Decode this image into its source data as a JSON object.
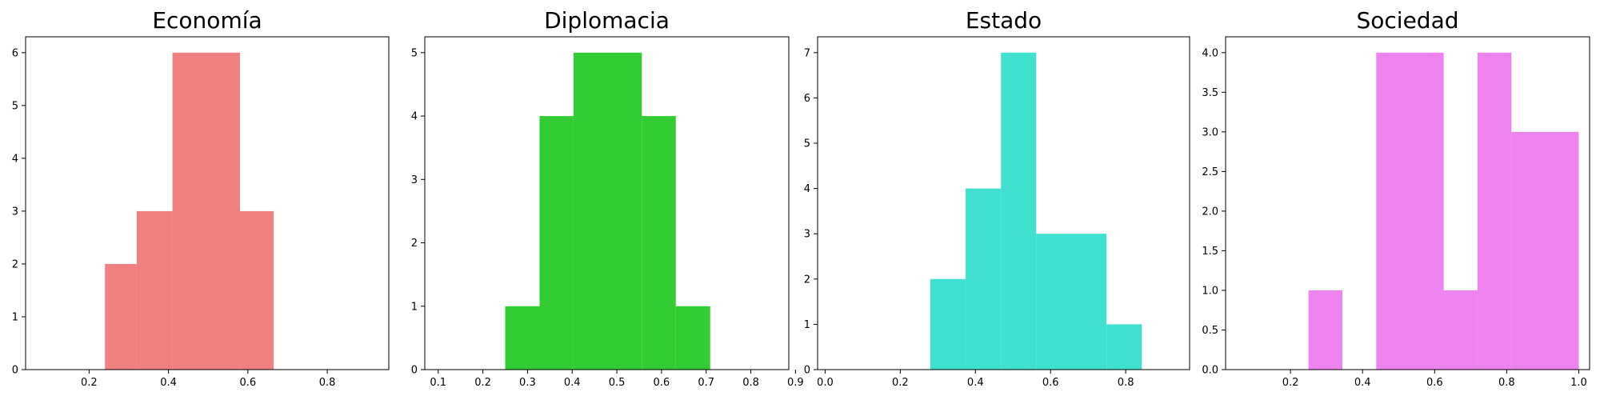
{
  "chart_data": [
    {
      "type": "bar",
      "title": "Economía",
      "color": "#F08080",
      "bins": [
        [
          0.24,
          0.32
        ],
        [
          0.32,
          0.41
        ],
        [
          0.41,
          0.58
        ],
        [
          0.58,
          0.665
        ]
      ],
      "values": [
        2,
        3,
        6,
        3
      ],
      "xlim": [
        0.04,
        0.955
      ],
      "ylim": [
        0,
        6.3
      ],
      "xticks": [
        0.2,
        0.4,
        0.6,
        0.8
      ],
      "xtick_labels": [
        "0.2",
        "0.4",
        "0.6",
        "0.8"
      ],
      "yticks": [
        0,
        1,
        2,
        3,
        4,
        5,
        6
      ],
      "ytick_labels": [
        "0",
        "1",
        "2",
        "3",
        "4",
        "5",
        "6"
      ],
      "xlabel": "",
      "ylabel": ""
    },
    {
      "type": "bar",
      "title": "Diplomacia",
      "color": "#32CD32",
      "bins": [
        [
          0.25,
          0.327
        ],
        [
          0.327,
          0.403
        ],
        [
          0.403,
          0.556
        ],
        [
          0.556,
          0.632
        ],
        [
          0.632,
          0.709
        ]
      ],
      "values": [
        1,
        4,
        5,
        4,
        1
      ],
      "xlim": [
        0.07,
        0.885
      ],
      "ylim": [
        0,
        5.25
      ],
      "xticks": [
        0.1,
        0.2,
        0.3,
        0.4,
        0.5,
        0.6,
        0.7,
        0.8,
        0.9
      ],
      "xtick_labels": [
        "0.1",
        "0.2",
        "0.3",
        "0.4",
        "0.5",
        "0.6",
        "0.7",
        "0.8",
        "0.9"
      ],
      "yticks": [
        0,
        1,
        2,
        3,
        4,
        5
      ],
      "ytick_labels": [
        "0",
        "1",
        "2",
        "3",
        "4",
        "5"
      ],
      "xlabel": "",
      "ylabel": ""
    },
    {
      "type": "bar",
      "title": "Estado",
      "color": "#40E0D0",
      "bins": [
        [
          0.28,
          0.374
        ],
        [
          0.374,
          0.468
        ],
        [
          0.468,
          0.562
        ],
        [
          0.562,
          0.749
        ],
        [
          0.749,
          0.843
        ]
      ],
      "values": [
        2,
        4,
        7,
        3,
        1
      ],
      "xlim": [
        -0.02,
        0.97
      ],
      "ylim": [
        0,
        7.35
      ],
      "xticks": [
        0.0,
        0.2,
        0.4,
        0.6,
        0.8
      ],
      "xtick_labels": [
        "0.0",
        "0.2",
        "0.4",
        "0.6",
        "0.8"
      ],
      "yticks": [
        0,
        1,
        2,
        3,
        4,
        5,
        6,
        7
      ],
      "ytick_labels": [
        "0",
        "1",
        "2",
        "3",
        "4",
        "5",
        "6",
        "7"
      ],
      "xlabel": "",
      "ylabel": ""
    },
    {
      "type": "bar",
      "title": "Sociedad",
      "color": "#EE82EE",
      "bins": [
        [
          0.25,
          0.344
        ],
        [
          0.438,
          0.625
        ],
        [
          0.625,
          0.719
        ],
        [
          0.719,
          0.813
        ],
        [
          0.813,
          1.0
        ]
      ],
      "values": [
        1,
        4,
        1,
        4,
        3
      ],
      "xlim": [
        0.02,
        1.03
      ],
      "ylim": [
        0,
        4.2
      ],
      "xticks": [
        0.2,
        0.4,
        0.6,
        0.8,
        1.0
      ],
      "xtick_labels": [
        "0.2",
        "0.4",
        "0.6",
        "0.8",
        "1.0"
      ],
      "yticks": [
        0,
        0.5,
        1.0,
        1.5,
        2.0,
        2.5,
        3.0,
        3.5,
        4.0
      ],
      "ytick_labels": [
        "0.0",
        "0.5",
        "1.0",
        "1.5",
        "2.0",
        "2.5",
        "3.0",
        "3.5",
        "4.0"
      ],
      "xlabel": "",
      "ylabel": ""
    }
  ]
}
